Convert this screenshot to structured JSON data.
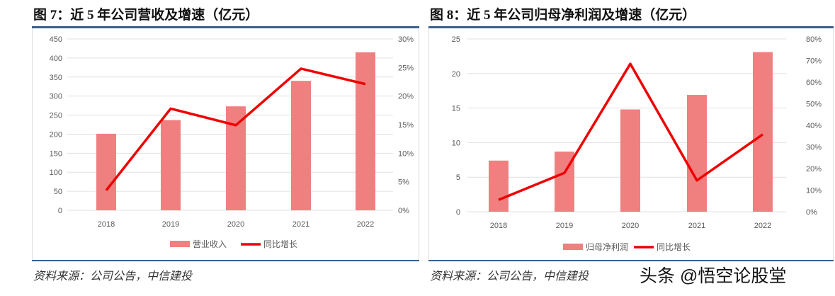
{
  "footer": {
    "source_left": "资料来源：公司公告，中信建投",
    "source_right": "资料来源：公司公告，中信建投",
    "watermark": "头条 @悟空论股堂"
  },
  "colors": {
    "bar": "#f08080",
    "line": "#ee0000"
  },
  "chart_data": [
    {
      "type": "bar+line",
      "title": "图 7：近 5 年公司营收及增速（亿元）",
      "categories": [
        "2018",
        "2019",
        "2020",
        "2021",
        "2022"
      ],
      "series": [
        {
          "name": "营业收入",
          "axis": "left",
          "values": [
            201,
            237,
            273,
            340,
            415
          ]
        },
        {
          "name": "同比增长",
          "axis": "right",
          "values": [
            3.5,
            17.8,
            14.9,
            24.8,
            22.1
          ]
        }
      ],
      "ylim": [
        0,
        450
      ],
      "yticks": [
        "0",
        "50",
        "100",
        "150",
        "200",
        "250",
        "300",
        "350",
        "400",
        "450"
      ],
      "y2lim": [
        0,
        30
      ],
      "y2ticks": [
        "0%",
        "5%",
        "10%",
        "15%",
        "20%",
        "25%",
        "30%"
      ],
      "legend": "bottom"
    },
    {
      "type": "bar+line",
      "title": "图 8：近 5 年公司归母净利润及增速（亿元）",
      "categories": [
        "2018",
        "2019",
        "2020",
        "2021",
        "2022"
      ],
      "series": [
        {
          "name": "归母净利润",
          "axis": "left",
          "values": [
            7.4,
            8.7,
            14.8,
            16.9,
            23.1
          ]
        },
        {
          "name": "同比增长",
          "axis": "right",
          "values": [
            5.5,
            18,
            68.5,
            14.5,
            35.8
          ]
        }
      ],
      "ylim": [
        0,
        25
      ],
      "yticks": [
        "0",
        "5",
        "10",
        "15",
        "20",
        "25"
      ],
      "y2lim": [
        0,
        80
      ],
      "y2ticks": [
        "0%",
        "10%",
        "20%",
        "30%",
        "40%",
        "50%",
        "60%",
        "70%",
        "80%"
      ],
      "legend": "bottom"
    }
  ]
}
